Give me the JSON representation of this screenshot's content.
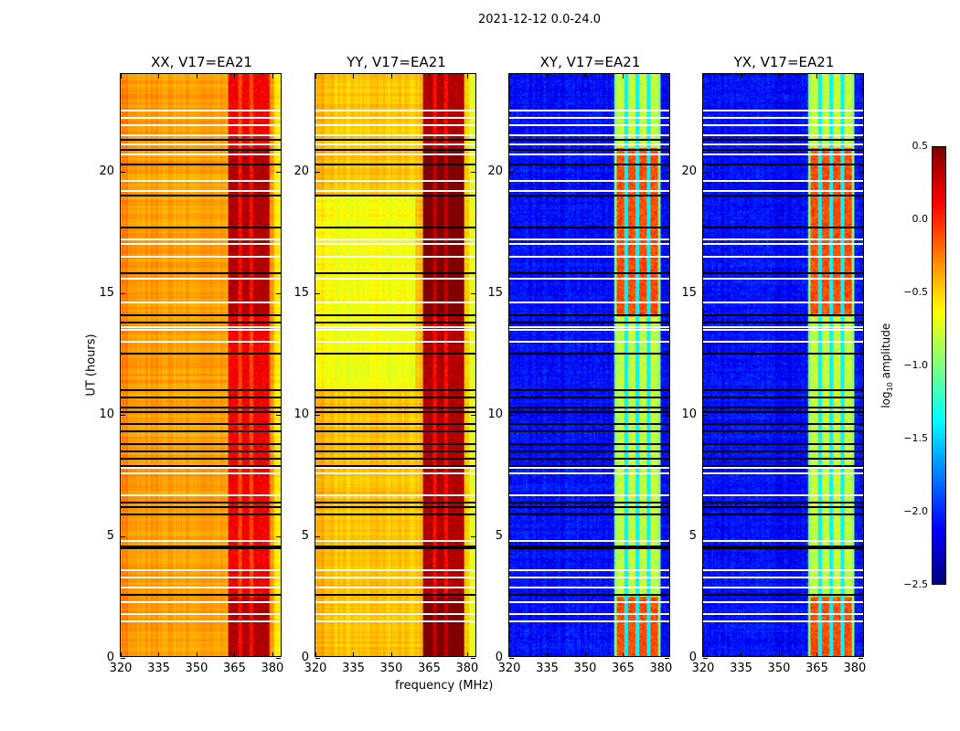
{
  "chart_data": {
    "type": "heatmap",
    "title": "2021-12-12 0.0-24.0",
    "xlabel": "frequency (MHz)",
    "ylabel": "UT (hours)",
    "xlim": [
      320,
      384
    ],
    "ylim": [
      0,
      24
    ],
    "xticks": [
      "320",
      "335",
      "350",
      "365",
      "380"
    ],
    "xtick_values": [
      320,
      335,
      350,
      365,
      380
    ],
    "yticks": [
      "0",
      "5",
      "10",
      "15",
      "20"
    ],
    "ytick_values": [
      0,
      5,
      10,
      15,
      20
    ],
    "panels": [
      {
        "title": "XX, V17=EA21",
        "kind": "parallel",
        "baseline": -0.35,
        "rfi_band_MHz": [
          363,
          379
        ],
        "rfi_level": 0.15
      },
      {
        "title": "YY, V17=EA21",
        "kind": "parallel",
        "baseline": -0.45,
        "rfi_band_MHz": [
          363,
          379
        ],
        "rfi_level": 0.35
      },
      {
        "title": "XY, V17=EA21",
        "kind": "cross",
        "baseline": -2.1,
        "rfi_band_MHz": [
          363,
          379
        ],
        "rfi_level": -0.8
      },
      {
        "title": "YX, V17=EA21",
        "kind": "cross",
        "baseline": -2.1,
        "rfi_band_MHz": [
          363,
          379
        ],
        "rfi_level": -0.8
      }
    ],
    "flagged_hours_white": [
      1.5,
      1.8,
      2.3,
      2.9,
      3.3,
      3.6,
      4.8,
      6.7,
      7.6,
      7.8,
      12.5,
      13.0,
      13.5,
      13.6,
      14.6,
      15.6,
      16.5,
      17.0,
      17.2,
      19.2,
      19.6,
      20.7,
      21.1,
      21.5,
      21.9,
      22.2,
      22.5
    ],
    "flagged_hours_black": [
      2.6,
      4.5,
      4.6,
      5.9,
      6.2,
      6.4,
      7.9,
      8.2,
      8.5,
      8.8,
      9.3,
      9.6,
      10.1,
      10.3,
      10.7,
      11.0,
      12.5,
      13.8,
      14.1,
      15.8,
      17.7,
      19.0,
      20.3,
      20.9,
      21.3
    ],
    "colorbar": {
      "label": "log10 amplitude",
      "range": [
        -2.5,
        0.5
      ],
      "ticks": [
        "0.5",
        "0.0",
        "−0.5",
        "−1.0",
        "−1.5",
        "−2.0",
        "−2.5"
      ],
      "tick_values": [
        0.5,
        0.0,
        -0.5,
        -1.0,
        -1.5,
        -2.0,
        -2.5
      ],
      "colormap": "jet"
    }
  }
}
